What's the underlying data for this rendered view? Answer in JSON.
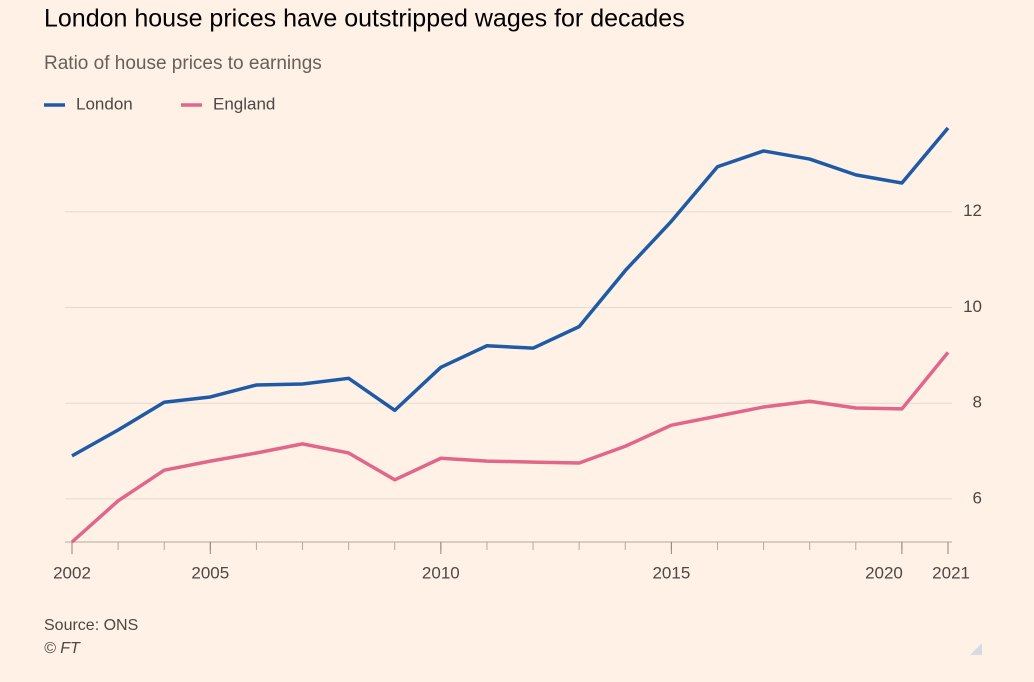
{
  "chart_data": {
    "type": "line",
    "title": "London house prices have outstripped wages for decades",
    "subtitle": "Ratio of house prices to earnings",
    "source": "Source: ONS",
    "credit": "© FT",
    "x": [
      2002,
      2003,
      2004,
      2005,
      2006,
      2007,
      2008,
      2009,
      2010,
      2011,
      2012,
      2013,
      2014,
      2015,
      2016,
      2017,
      2018,
      2019,
      2020,
      2021
    ],
    "series": [
      {
        "name": "London",
        "color": "#1f5aa6",
        "values": [
          6.9,
          7.44,
          8.02,
          8.13,
          8.38,
          8.4,
          8.52,
          7.85,
          8.75,
          9.2,
          9.15,
          9.6,
          10.77,
          11.8,
          12.94,
          13.27,
          13.1,
          12.77,
          12.6,
          13.75
        ]
      },
      {
        "name": "England",
        "color": "#e0668a",
        "values": [
          5.1,
          5.96,
          6.6,
          6.79,
          6.96,
          7.15,
          6.96,
          6.4,
          6.85,
          6.79,
          6.77,
          6.75,
          7.1,
          7.54,
          7.73,
          7.92,
          8.04,
          7.9,
          7.88,
          9.06
        ]
      }
    ],
    "xlim": [
      2002,
      2021
    ],
    "xticks": [
      2002,
      2005,
      2010,
      2015,
      2020,
      2021
    ],
    "ylim": [
      5.1,
      14
    ],
    "yticks": [
      6,
      8,
      10,
      12
    ],
    "grid": true,
    "y_axis_side": "right"
  }
}
